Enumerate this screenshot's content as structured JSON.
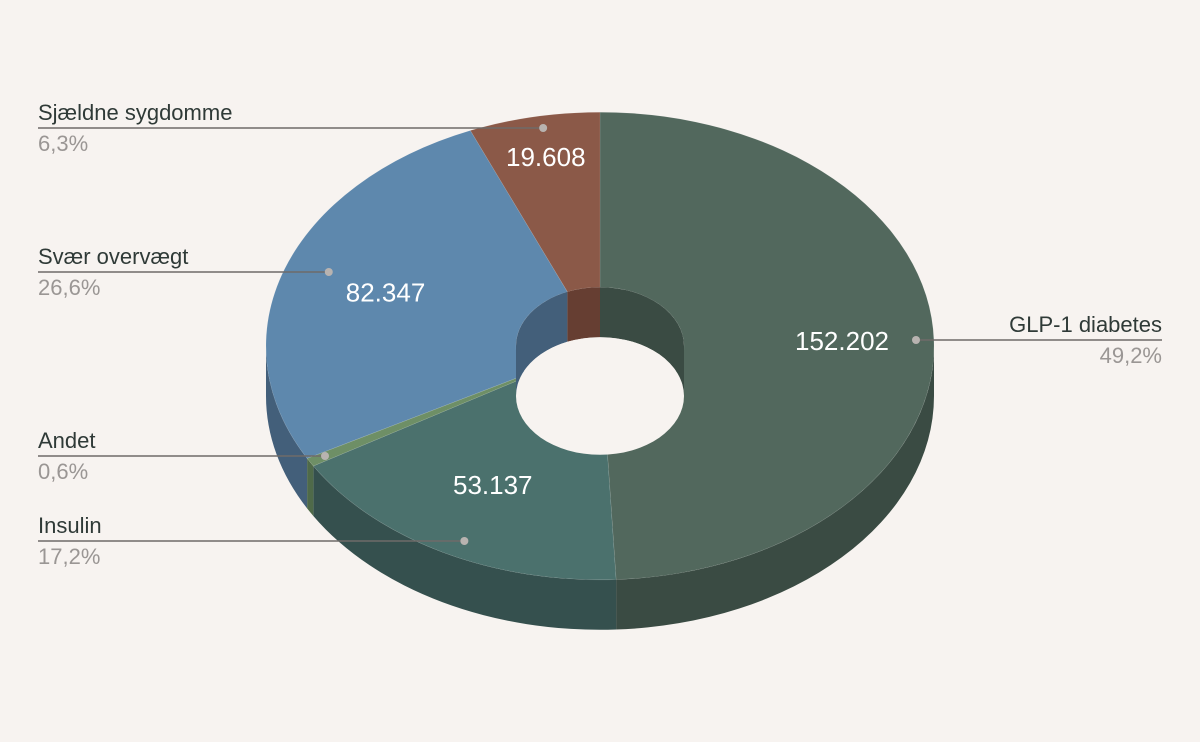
{
  "chart_data": {
    "type": "pie",
    "variant": "3d-donut",
    "unit": "",
    "slices": [
      {
        "name": "GLP-1 diabetes",
        "value": 152202,
        "value_label": "152.202",
        "percent_label": "49,2%",
        "color": "#52685d",
        "side_color": "#3a4b43",
        "legend_side": "right"
      },
      {
        "name": "Insulin",
        "value": 53137,
        "value_label": "53.137",
        "percent_label": "17,2%",
        "color": "#4b716d",
        "side_color": "#35504e",
        "legend_side": "left"
      },
      {
        "name": "Andet",
        "value": 1856,
        "value_label": "",
        "percent_label": "0,6%",
        "color": "#6e8f66",
        "side_color": "#4f6a49",
        "legend_side": "left"
      },
      {
        "name": "Svær overvægt",
        "value": 82347,
        "value_label": "82.347",
        "percent_label": "26,6%",
        "color": "#5e88ad",
        "side_color": "#435f7a",
        "legend_side": "left"
      },
      {
        "name": "Sjældne sygdomme",
        "value": 19608,
        "value_label": "19.608",
        "percent_label": "6,3%",
        "color": "#8b5948",
        "side_color": "#663e32",
        "legend_side": "left"
      }
    ]
  }
}
